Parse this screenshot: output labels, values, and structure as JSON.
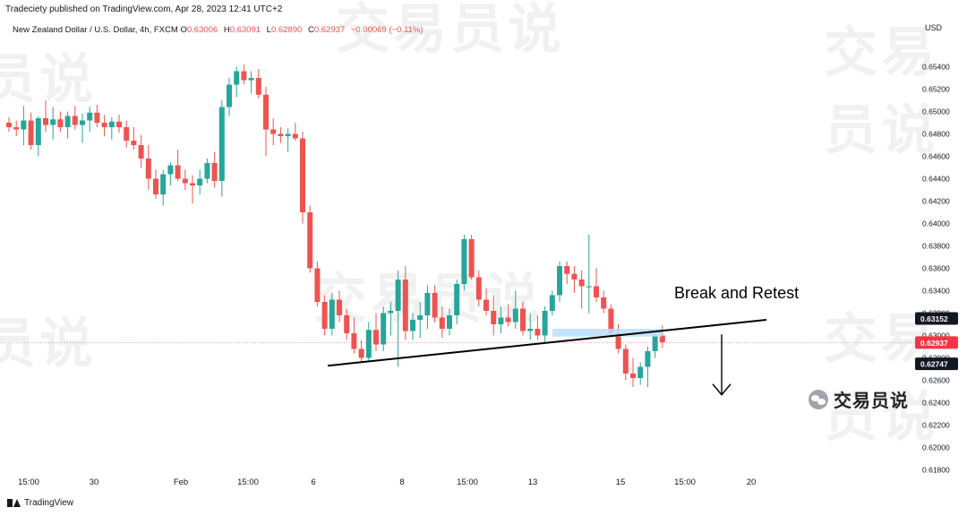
{
  "publisher_line": "Tradeciety published on TradingView.com, Apr 28, 2023 12:41 UTC+2",
  "symbol": {
    "name": "New Zealand Dollar / U.S. Dollar, 4h, FXCM",
    "open_label": "O",
    "open": "0.63006",
    "high_label": "H",
    "high": "0.63091",
    "low_label": "L",
    "low": "0.62890",
    "close_label": "C",
    "close": "0.62937",
    "change": "−0.00069 (−0.11%)"
  },
  "currency": "USD",
  "footer_brand": "TradingView",
  "watermark": {
    "text_a": "交易员说",
    "text_b": "员说",
    "text_c": "交易员说"
  },
  "wechat_name": "交易员说",
  "colors": {
    "bull": "#26a69a",
    "bear": "#ef5350",
    "line": "#000000",
    "zone": "#bbdefb",
    "label_dark": "#131722",
    "label_red": "#f23645"
  },
  "chart_data": {
    "type": "candlestick",
    "ylim": [
      0.619,
      0.655
    ],
    "y_ticks": [
      "0.65400",
      "0.65200",
      "0.65000",
      "0.64800",
      "0.64600",
      "0.64400",
      "0.64200",
      "0.64000",
      "0.63800",
      "0.63600",
      "0.63400",
      "0.63200",
      "0.63000",
      "0.62800",
      "0.62600",
      "0.62400",
      "0.62200",
      "0.62000",
      "0.61800"
    ],
    "x_ticks": [
      "15:00",
      "30",
      "Feb",
      "15:00",
      "6",
      "8",
      "15:00",
      "13",
      "15",
      "15:00",
      "20"
    ],
    "price_labels": [
      {
        "value": "0.63152",
        "price": 0.63152,
        "style": "dark"
      },
      {
        "value": "0.62937",
        "price": 0.62937,
        "style": "red"
      },
      {
        "value": "0.62747",
        "price": 0.62747,
        "style": "dark"
      }
    ],
    "annotations": {
      "text": "Break and Retest",
      "trendline": {
        "from_index": 0,
        "from_price": 0.6273,
        "to_index": 98,
        "to_price": 0.6314
      },
      "retest_zone": {
        "from_index": 74,
        "to_index": 89,
        "top": 0.6306,
        "bottom": 0.6299
      },
      "arrow": {
        "index": 91,
        "from_price": 0.6301,
        "to_price": 0.6247
      }
    },
    "candles": [
      [
        0.649,
        0.6495,
        0.6482,
        0.6486
      ],
      [
        0.6486,
        0.6492,
        0.6478,
        0.6484
      ],
      [
        0.6484,
        0.6505,
        0.647,
        0.6492
      ],
      [
        0.6492,
        0.6499,
        0.6466,
        0.647
      ],
      [
        0.647,
        0.6496,
        0.646,
        0.6494
      ],
      [
        0.6494,
        0.651,
        0.6482,
        0.6488
      ],
      [
        0.6488,
        0.6504,
        0.6475,
        0.6493
      ],
      [
        0.6493,
        0.65,
        0.6482,
        0.6486
      ],
      [
        0.6486,
        0.65,
        0.6476,
        0.6496
      ],
      [
        0.6496,
        0.6505,
        0.6484,
        0.6488
      ],
      [
        0.6488,
        0.6498,
        0.6472,
        0.6492
      ],
      [
        0.6492,
        0.6504,
        0.6482,
        0.6499
      ],
      [
        0.6499,
        0.6506,
        0.6486,
        0.649
      ],
      [
        0.649,
        0.6497,
        0.6478,
        0.6486
      ],
      [
        0.6486,
        0.6495,
        0.6475,
        0.6491
      ],
      [
        0.6491,
        0.6497,
        0.6481,
        0.6486
      ],
      [
        0.6486,
        0.6492,
        0.6468,
        0.6474
      ],
      [
        0.6474,
        0.6486,
        0.6466,
        0.647
      ],
      [
        0.647,
        0.6479,
        0.645,
        0.6458
      ],
      [
        0.6458,
        0.647,
        0.643,
        0.644
      ],
      [
        0.644,
        0.6448,
        0.6422,
        0.6426
      ],
      [
        0.6426,
        0.6448,
        0.6416,
        0.6444
      ],
      [
        0.6444,
        0.6455,
        0.6434,
        0.6452
      ],
      [
        0.6452,
        0.6466,
        0.6438,
        0.644
      ],
      [
        0.644,
        0.6448,
        0.643,
        0.6436
      ],
      [
        0.6436,
        0.6443,
        0.6418,
        0.6434
      ],
      [
        0.6434,
        0.6448,
        0.6426,
        0.644
      ],
      [
        0.644,
        0.6458,
        0.6436,
        0.6454
      ],
      [
        0.6454,
        0.6464,
        0.6432,
        0.6438
      ],
      [
        0.6438,
        0.651,
        0.6424,
        0.6504
      ],
      [
        0.6504,
        0.653,
        0.6496,
        0.6524
      ],
      [
        0.6524,
        0.654,
        0.6513,
        0.6536
      ],
      [
        0.6536,
        0.6542,
        0.6524,
        0.6528
      ],
      [
        0.6528,
        0.6536,
        0.6516,
        0.653
      ],
      [
        0.653,
        0.6538,
        0.6512,
        0.6515
      ],
      [
        0.6515,
        0.6522,
        0.646,
        0.6484
      ],
      [
        0.6484,
        0.6494,
        0.647,
        0.648
      ],
      [
        0.648,
        0.6486,
        0.6472,
        0.6478
      ],
      [
        0.6478,
        0.6485,
        0.6464,
        0.648
      ],
      [
        0.648,
        0.649,
        0.6474,
        0.6476
      ],
      [
        0.6476,
        0.6482,
        0.64,
        0.641
      ],
      [
        0.641,
        0.6416,
        0.6356,
        0.636
      ],
      [
        0.636,
        0.6366,
        0.6326,
        0.633
      ],
      [
        0.633,
        0.6336,
        0.63,
        0.6306
      ],
      [
        0.6306,
        0.6338,
        0.63,
        0.6332
      ],
      [
        0.6332,
        0.634,
        0.6312,
        0.6318
      ],
      [
        0.6318,
        0.6324,
        0.6296,
        0.6302
      ],
      [
        0.6302,
        0.6316,
        0.6284,
        0.6288
      ],
      [
        0.6288,
        0.6296,
        0.6276,
        0.628
      ],
      [
        0.628,
        0.6312,
        0.6276,
        0.6305
      ],
      [
        0.6305,
        0.632,
        0.6286,
        0.6292
      ],
      [
        0.6292,
        0.6326,
        0.6286,
        0.632
      ],
      [
        0.632,
        0.633,
        0.63,
        0.6322
      ],
      [
        0.6322,
        0.6358,
        0.6272,
        0.635
      ],
      [
        0.635,
        0.6362,
        0.6296,
        0.6304
      ],
      [
        0.6304,
        0.632,
        0.6296,
        0.6314
      ],
      [
        0.6314,
        0.633,
        0.6298,
        0.6318
      ],
      [
        0.6318,
        0.6345,
        0.6306,
        0.6338
      ],
      [
        0.6338,
        0.6345,
        0.6312,
        0.6316
      ],
      [
        0.6316,
        0.6326,
        0.6298,
        0.6306
      ],
      [
        0.6306,
        0.6324,
        0.63,
        0.6318
      ],
      [
        0.6318,
        0.635,
        0.631,
        0.6346
      ],
      [
        0.6346,
        0.639,
        0.634,
        0.6386
      ],
      [
        0.6386,
        0.639,
        0.635,
        0.6352
      ],
      [
        0.6352,
        0.6358,
        0.6326,
        0.6332
      ],
      [
        0.6332,
        0.6342,
        0.6318,
        0.6322
      ],
      [
        0.6322,
        0.6336,
        0.63,
        0.631
      ],
      [
        0.631,
        0.6326,
        0.6302,
        0.6316
      ],
      [
        0.6316,
        0.6328,
        0.6308,
        0.6312
      ],
      [
        0.6312,
        0.634,
        0.6306,
        0.6324
      ],
      [
        0.6324,
        0.633,
        0.63,
        0.6304
      ],
      [
        0.6304,
        0.632,
        0.6296,
        0.6306
      ],
      [
        0.6306,
        0.6318,
        0.6296,
        0.63
      ],
      [
        0.63,
        0.6326,
        0.6294,
        0.6322
      ],
      [
        0.6322,
        0.634,
        0.6318,
        0.6336
      ],
      [
        0.6336,
        0.6366,
        0.633,
        0.6362
      ],
      [
        0.6362,
        0.6366,
        0.6346,
        0.6355
      ],
      [
        0.6355,
        0.6362,
        0.6338,
        0.635
      ],
      [
        0.635,
        0.6358,
        0.6324,
        0.6344
      ],
      [
        0.6344,
        0.639,
        0.632,
        0.6344
      ],
      [
        0.6344,
        0.636,
        0.633,
        0.6334
      ],
      [
        0.6334,
        0.634,
        0.632,
        0.6324
      ],
      [
        0.6324,
        0.6328,
        0.63,
        0.6302
      ],
      [
        0.6302,
        0.631,
        0.6284,
        0.6288
      ],
      [
        0.6288,
        0.6292,
        0.626,
        0.6266
      ],
      [
        0.6266,
        0.628,
        0.6254,
        0.6262
      ],
      [
        0.6262,
        0.6276,
        0.6256,
        0.6272
      ],
      [
        0.6272,
        0.629,
        0.6254,
        0.6286
      ],
      [
        0.6286,
        0.6302,
        0.628,
        0.63
      ],
      [
        0.63,
        0.6309,
        0.6289,
        0.6294
      ]
    ]
  }
}
